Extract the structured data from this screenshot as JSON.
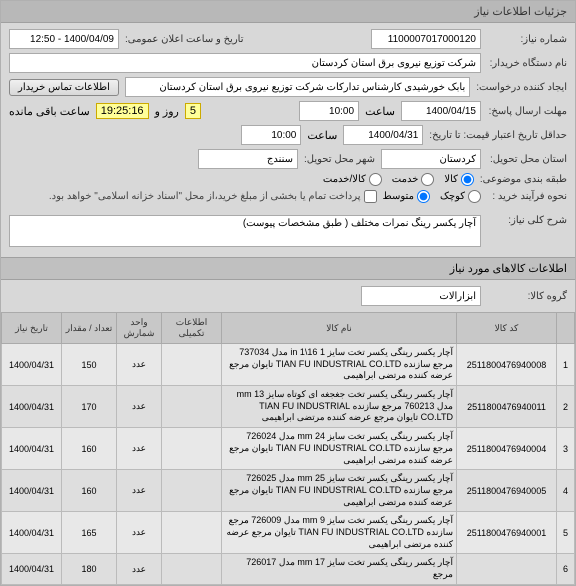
{
  "header": {
    "title": "جزئیات اطلاعات نیاز"
  },
  "form": {
    "need_no_label": "شماره نیاز:",
    "need_no": "1100007017000120",
    "pub_datetime_label": "تاریخ و ساعت اعلان عمومی:",
    "pub_datetime": "1400/04/09 - 12:50",
    "buyer_org_label": "نام دستگاه خریدار:",
    "buyer_org": "شرکت توزیع نیروی برق استان کردستان",
    "creator_label": "ایجاد کننده درخواست:",
    "creator": "بابک خورشیدی کارشناس تدارکات شرکت توزیع نیروی برق استان کردستان",
    "buyer_contact_btn": "اطلاعات تماس خریدار",
    "deadline_label": "مهلت ارسال پاسخ:",
    "deadline_date": "1400/04/15",
    "time_label": "ساعت",
    "deadline_time": "10:00",
    "days_remain": "5",
    "days_label": "روز و",
    "hours_remain": "19:25:16",
    "hours_label": "ساعت باقی مانده",
    "price_valid_label": "حداقل تاریخ اعتبار قیمت: تا تاریخ:",
    "price_valid_date": "1400/04/31",
    "price_valid_time": "10:00",
    "delivery_state_label": "استان محل تحویل:",
    "delivery_state": "کردستان",
    "delivery_city_label": "شهر محل تحویل:",
    "delivery_city": "سنندج",
    "budget_class_label": "طبقه بندی موضوعی:",
    "kala": "کالا",
    "khadmat": "خدمت",
    "kala_khadmat": "کالا/خدمت",
    "process_label": "نحوه فرآیند خرید :",
    "small": "کوچک",
    "medium": "متوسط",
    "treasury_note": "پرداخت تمام یا بخشی از مبلغ خرید،از محل \"اسناد خزانه اسلامی\" خواهد بود.",
    "need_title_label": "شرح کلی نیاز:",
    "need_title": "آچار یکسر رینگ نمرات مختلف ( طبق مشخصات پیوست)"
  },
  "goods_section": {
    "title": "اطلاعات کالاهای مورد نیاز",
    "group_label": "گروه کالا:",
    "group": "ابزارآلات"
  },
  "table": {
    "headers": {
      "idx": "",
      "code": "کد کالا",
      "name": "نام کالا",
      "extra": "اطلاعات تکمیلی",
      "unit": "واحد شمارش",
      "qty": "تعداد / مقدار",
      "date": "تاریخ نیاز"
    },
    "rows": [
      {
        "idx": "1",
        "code": "2511800476940008",
        "name": "آچار یکسر رینگی یکسر تخت سایز 1 16\\1 in مدل 737034 مرجع سازنده TIAN FU INDUSTRIAL CO.LTD تایوان مرجع عرضه کننده مرتضی ابراهیمی",
        "unit": "عدد",
        "qty": "150",
        "date": "1400/04/31"
      },
      {
        "idx": "2",
        "code": "2511800476940011",
        "name": "آچار یکسر رینگی یکسر تخت جغجغه ای کوتاه سایز 13 mm مدل 760213 مرجع سازنده TIAN FU INDUSTRIAL CO.LTD تایوان مرجع عرضه کننده مرتضی ابراهیمی",
        "unit": "عدد",
        "qty": "170",
        "date": "1400/04/31"
      },
      {
        "idx": "3",
        "code": "2511800476940004",
        "name": "آچار یکسر رینگی یکسر تخت سایز 24 mm مدل 726024 مرجع سازنده TIAN FU INDUSTRIAL CO.LTD تایوان مرجع عرضه کننده مرتضی ابراهیمی",
        "unit": "عدد",
        "qty": "160",
        "date": "1400/04/31"
      },
      {
        "idx": "4",
        "code": "2511800476940005",
        "name": "آچار یکسر رینگی یکسر تخت سایز 25 mm مدل 726025 مرجع سازنده TIAN FU INDUSTRIAL CO.LTD تایوان مرجع عرضه کننده مرتضی ابراهیمی",
        "unit": "عدد",
        "qty": "160",
        "date": "1400/04/31"
      },
      {
        "idx": "5",
        "code": "2511800476940001",
        "name": "آچار یکسر رینگی یکسر تخت سایز 9 mm مدل 726009 مرجع سازنده TIAN FU INDUSTRIAL CO.LTD تایوان مرجع عرضه کننده مرتضی ابراهیمی",
        "unit": "عدد",
        "qty": "165",
        "date": "1400/04/31"
      },
      {
        "idx": "6",
        "code": "",
        "name": "آچار یکسر رینگی یکسر تخت سایز 17 mm مدل 726017 مرجع",
        "unit": "عدد",
        "qty": "180",
        "date": "1400/04/31"
      }
    ]
  }
}
